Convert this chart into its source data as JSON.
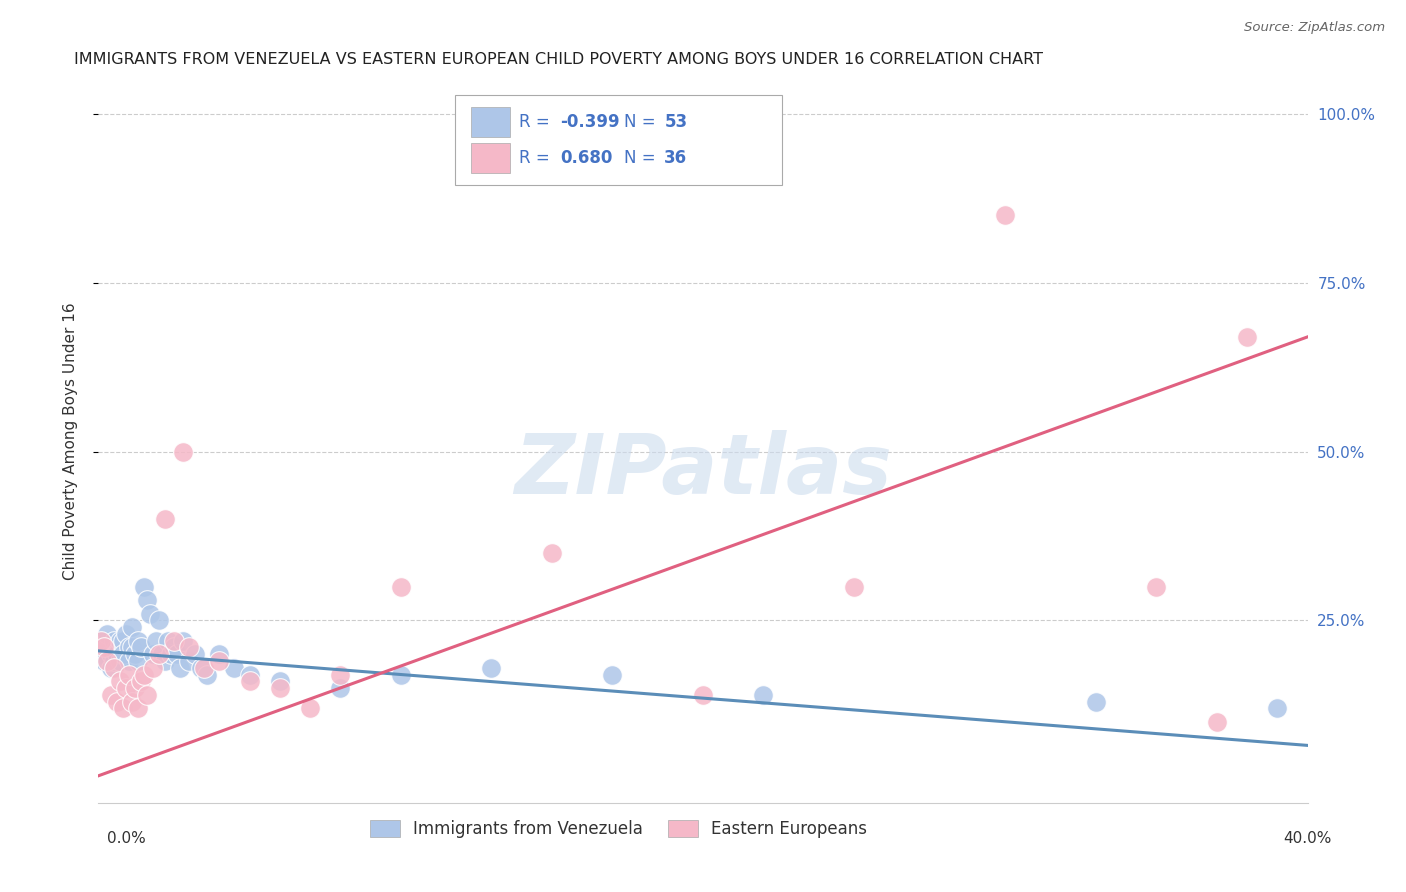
{
  "title": "IMMIGRANTS FROM VENEZUELA VS EASTERN EUROPEAN CHILD POVERTY AMONG BOYS UNDER 16 CORRELATION CHART",
  "source": "Source: ZipAtlas.com",
  "ylabel": "Child Poverty Among Boys Under 16",
  "ytick_labels": [
    "100.0%",
    "75.0%",
    "50.0%",
    "25.0%"
  ],
  "ytick_values": [
    1.0,
    0.75,
    0.5,
    0.25
  ],
  "xlim": [
    0.0,
    0.4
  ],
  "ylim": [
    -0.02,
    1.05
  ],
  "blue_R": "-0.399",
  "blue_N": "53",
  "pink_R": "0.680",
  "pink_N": "36",
  "blue_color": "#aec6e8",
  "pink_color": "#f5b8c8",
  "blue_line_color": "#5b8db8",
  "pink_line_color": "#e06080",
  "watermark": "ZIPatlas",
  "blue_scatter_x": [
    0.001,
    0.002,
    0.002,
    0.003,
    0.003,
    0.004,
    0.004,
    0.005,
    0.005,
    0.006,
    0.006,
    0.007,
    0.007,
    0.008,
    0.008,
    0.009,
    0.01,
    0.01,
    0.011,
    0.011,
    0.012,
    0.013,
    0.013,
    0.014,
    0.015,
    0.016,
    0.017,
    0.018,
    0.019,
    0.02,
    0.021,
    0.022,
    0.023,
    0.024,
    0.025,
    0.026,
    0.027,
    0.028,
    0.03,
    0.032,
    0.034,
    0.036,
    0.04,
    0.045,
    0.05,
    0.06,
    0.08,
    0.1,
    0.13,
    0.17,
    0.22,
    0.33,
    0.39
  ],
  "blue_scatter_y": [
    0.2,
    0.22,
    0.19,
    0.21,
    0.23,
    0.18,
    0.2,
    0.22,
    0.19,
    0.21,
    0.2,
    0.22,
    0.19,
    0.22,
    0.2,
    0.23,
    0.21,
    0.19,
    0.24,
    0.21,
    0.2,
    0.22,
    0.19,
    0.21,
    0.3,
    0.28,
    0.26,
    0.2,
    0.22,
    0.25,
    0.2,
    0.19,
    0.22,
    0.2,
    0.21,
    0.2,
    0.18,
    0.22,
    0.19,
    0.2,
    0.18,
    0.17,
    0.2,
    0.18,
    0.17,
    0.16,
    0.15,
    0.17,
    0.18,
    0.17,
    0.14,
    0.13,
    0.12
  ],
  "pink_scatter_x": [
    0.001,
    0.002,
    0.003,
    0.004,
    0.005,
    0.006,
    0.007,
    0.008,
    0.009,
    0.01,
    0.011,
    0.012,
    0.013,
    0.014,
    0.015,
    0.016,
    0.018,
    0.02,
    0.022,
    0.025,
    0.028,
    0.03,
    0.035,
    0.04,
    0.05,
    0.06,
    0.07,
    0.08,
    0.1,
    0.15,
    0.2,
    0.25,
    0.3,
    0.35,
    0.37,
    0.38
  ],
  "pink_scatter_y": [
    0.22,
    0.21,
    0.19,
    0.14,
    0.18,
    0.13,
    0.16,
    0.12,
    0.15,
    0.17,
    0.13,
    0.15,
    0.12,
    0.16,
    0.17,
    0.14,
    0.18,
    0.2,
    0.4,
    0.22,
    0.5,
    0.21,
    0.18,
    0.19,
    0.16,
    0.15,
    0.12,
    0.17,
    0.3,
    0.35,
    0.14,
    0.3,
    0.85,
    0.3,
    0.1,
    0.67
  ],
  "blue_line_x": [
    0.0,
    0.4
  ],
  "blue_line_y": [
    0.205,
    0.065
  ],
  "pink_line_x": [
    0.0,
    0.4
  ],
  "pink_line_y": [
    0.02,
    0.67
  ],
  "grid_color": "#cccccc",
  "background_color": "#ffffff",
  "title_fontsize": 11.5,
  "axis_fontsize": 11,
  "tick_fontsize": 10,
  "legend_fontsize": 12
}
